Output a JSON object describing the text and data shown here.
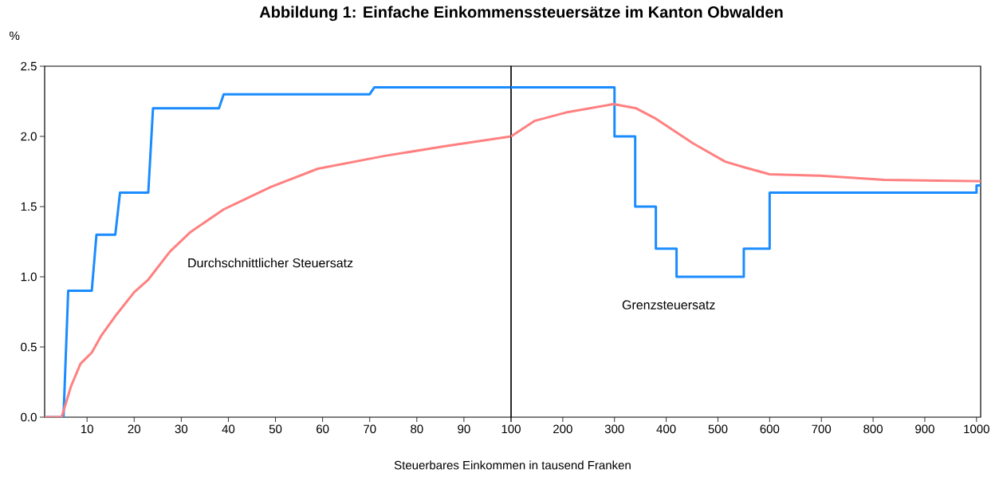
{
  "chart_data": [
    {
      "type": "line",
      "title": "Abbildung 1: Einfache Einkommenssteuersätze im Kanton Obwalden",
      "ylabel": "%",
      "xlabel": "Steuerbares Einkommen in tausend Franken",
      "xlim": [
        1,
        100
      ],
      "ylim": [
        0,
        2.5
      ],
      "xticks": [
        10,
        20,
        30,
        40,
        50,
        60,
        70,
        80,
        90,
        {
          "value": 100,
          "label": null
        }
      ],
      "yticks": [
        {
          "value": 0,
          "label": "0.0"
        },
        {
          "value": 0.5,
          "label": "0.5"
        },
        {
          "value": 1,
          "label": "1.0"
        },
        {
          "value": 1.5,
          "label": "1.5"
        },
        {
          "value": 2,
          "label": "2.0"
        },
        {
          "value": 2.5,
          "label": "2.5"
        }
      ],
      "series": [
        {
          "color": "#1a8cff",
          "x": [
            1,
            5,
            6,
            11,
            12,
            16,
            17,
            23,
            24,
            38,
            39,
            70,
            71,
            100
          ],
          "values": [
            0,
            0,
            0.9,
            0.9,
            1.3,
            1.3,
            1.6,
            1.6,
            2.2,
            2.2,
            2.3,
            2.3,
            2.35,
            2.35
          ]
        },
        {
          "name": "Durchschnittlicher Steuersatz",
          "color": "#ff8080",
          "x": [
            1,
            4.6,
            6.6,
            8.6,
            11,
            13,
            16,
            20,
            23,
            27.6,
            32,
            39,
            49,
            59,
            73,
            86,
            100
          ],
          "values": [
            0,
            0,
            0.22,
            0.38,
            0.46,
            0.58,
            0.72,
            0.89,
            0.98,
            1.18,
            1.32,
            1.48,
            1.64,
            1.77,
            1.86,
            1.93,
            2.0
          ]
        }
      ]
    },
    {
      "type": "line",
      "xlim": [
        100,
        1008
      ],
      "ylim": [
        0,
        2.5
      ],
      "tick_labels": "x",
      "xticks": [
        100,
        200,
        300,
        400,
        500,
        600,
        700,
        800,
        900,
        1000
      ],
      "series": [
        {
          "name": "Grenzsteuersatz",
          "color": "#1a8cff",
          "x": [
            100,
            300,
            300,
            340,
            340,
            380,
            380,
            420,
            420,
            550,
            550,
            600,
            600,
            1000,
            1000,
            1008
          ],
          "values": [
            2.35,
            2.35,
            2.0,
            2.0,
            1.5,
            1.5,
            1.2,
            1.2,
            1.0,
            1.0,
            1.2,
            1.2,
            1.6,
            1.6,
            1.65,
            1.65
          ]
        },
        {
          "color": "#ff8080",
          "x": [
            100,
            145,
            206,
            298,
            342,
            378,
            452,
            514,
            551,
            600,
            698,
            822,
            1008
          ],
          "values": [
            2.0,
            2.11,
            2.17,
            2.23,
            2.2,
            2.13,
            1.95,
            1.82,
            1.78,
            1.73,
            1.72,
            1.69,
            1.68
          ]
        }
      ]
    }
  ]
}
